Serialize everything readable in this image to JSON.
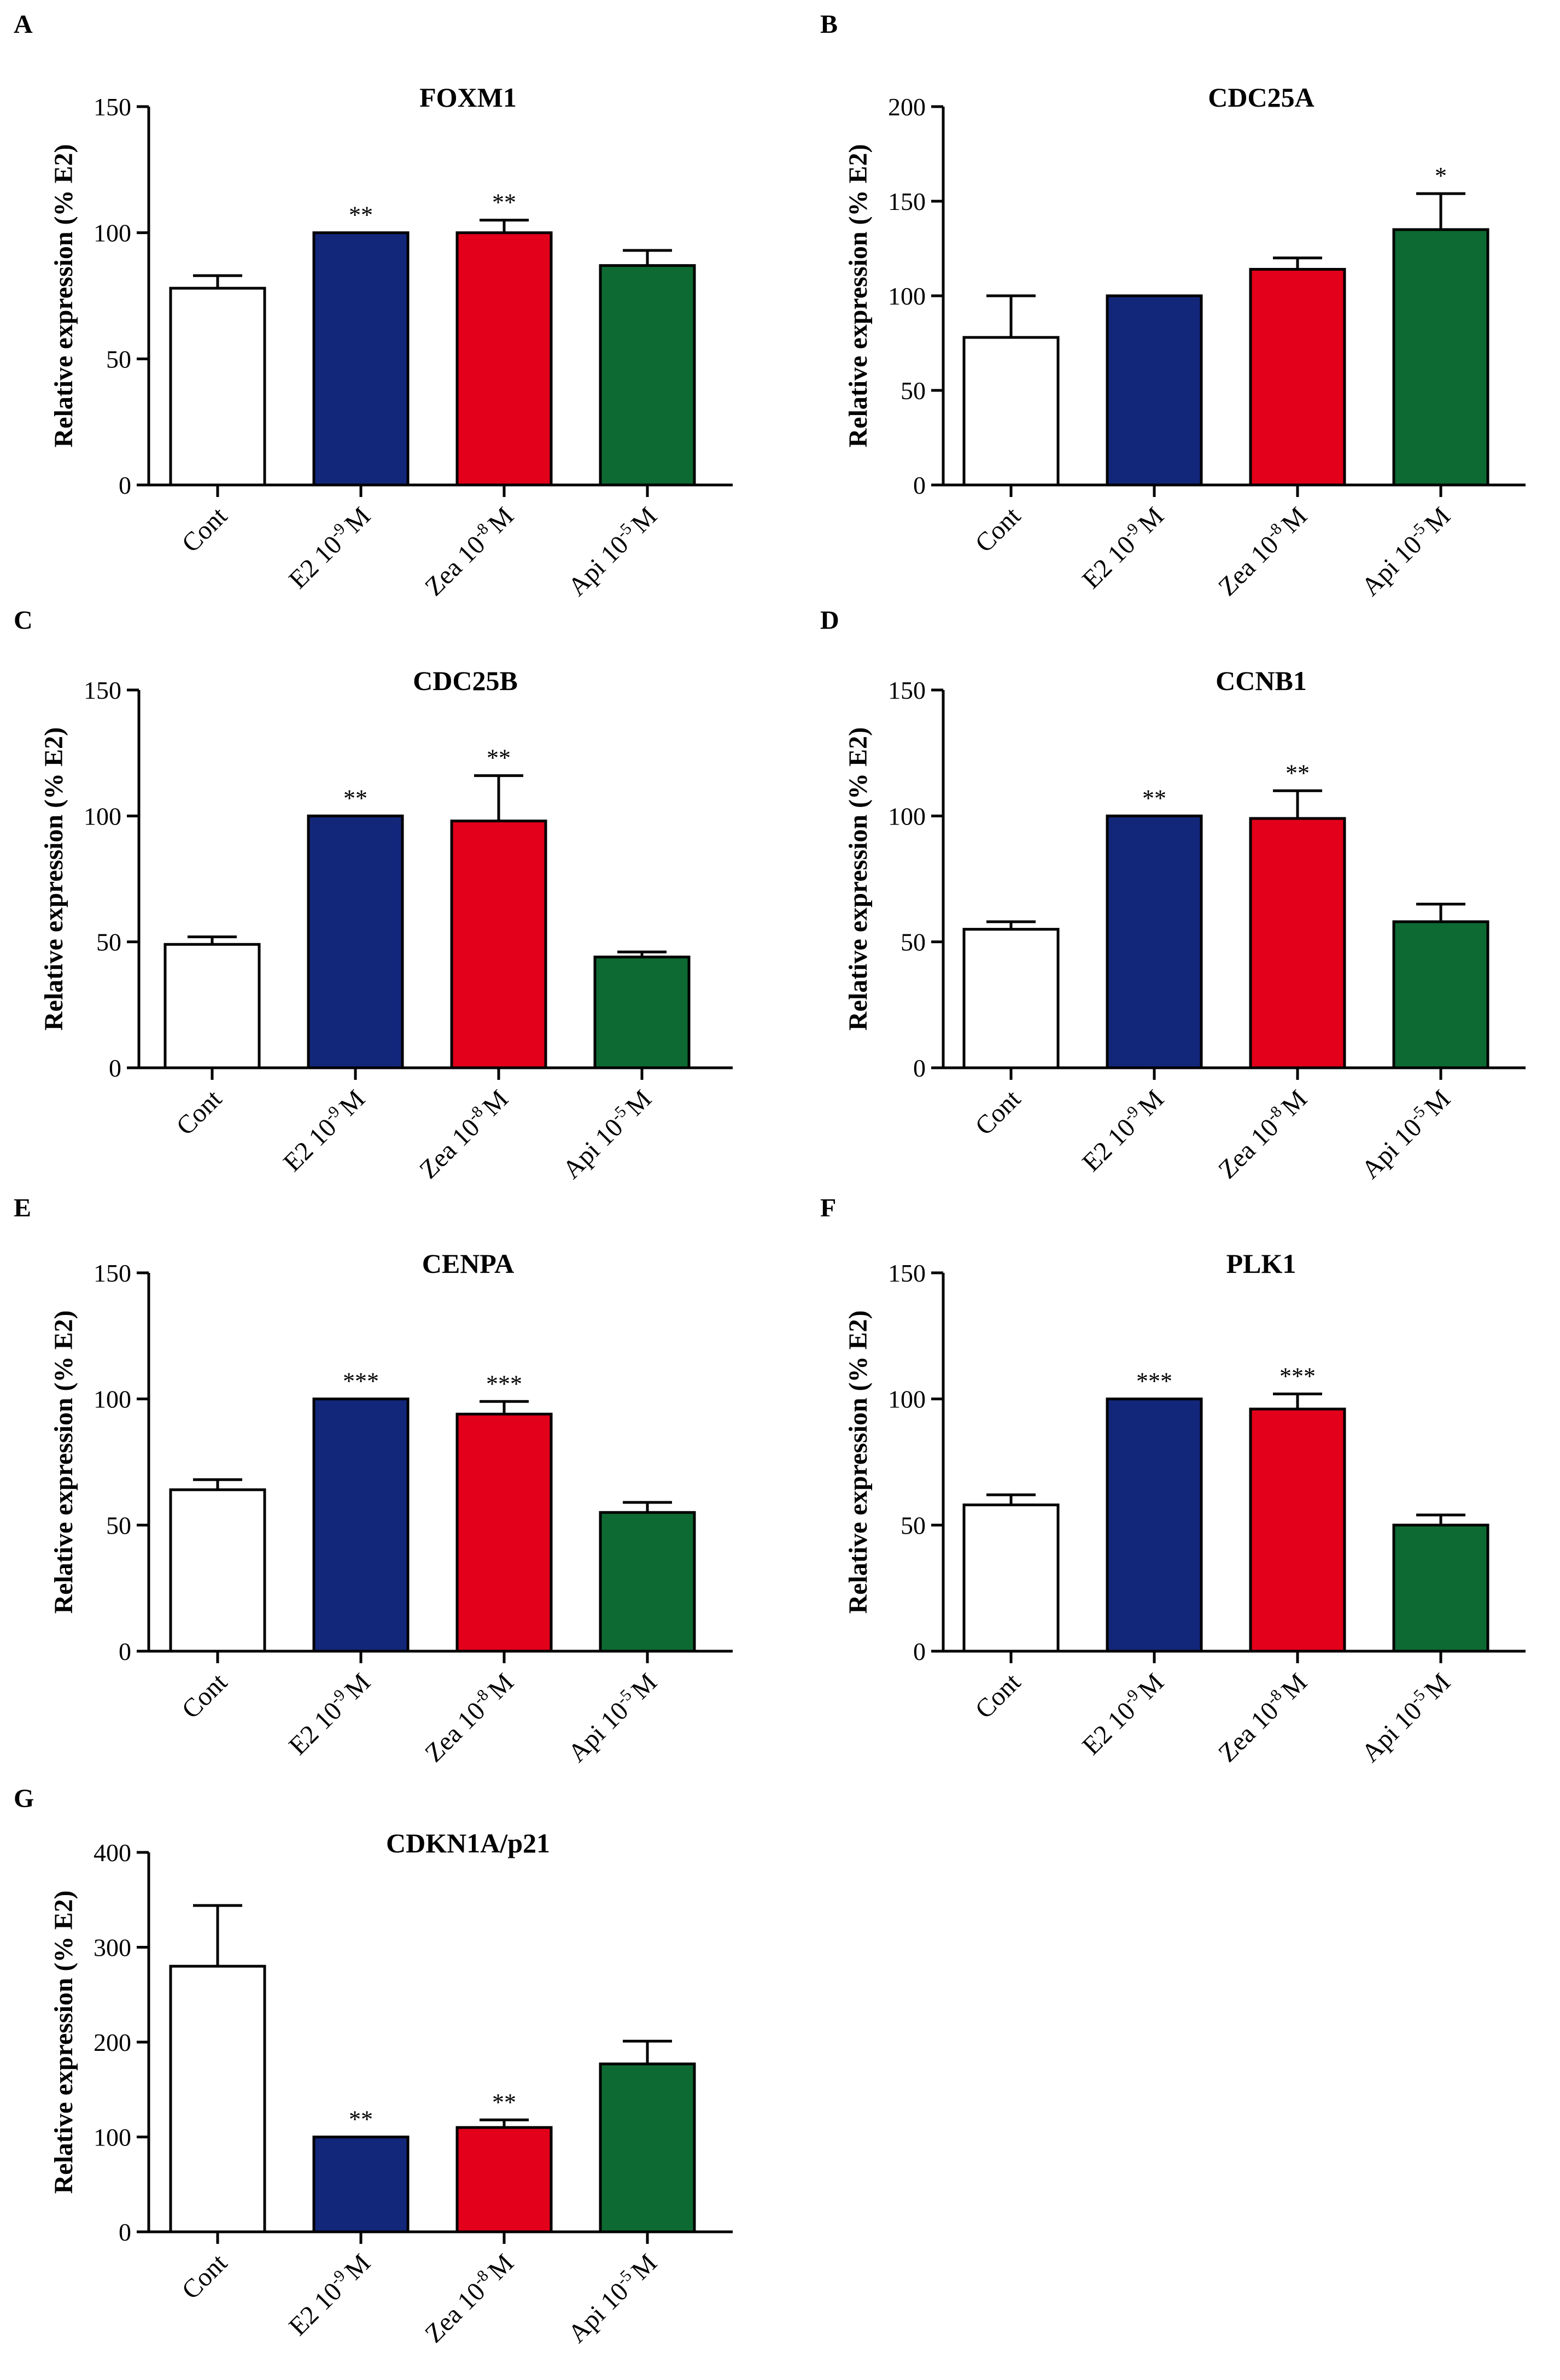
{
  "figure": {
    "categories": [
      {
        "base": "Cont",
        "exp": "",
        "unit": ""
      },
      {
        "base": "E2 10",
        "exp": "-9",
        "unit": "M"
      },
      {
        "base": "Zea 10",
        "exp": "-8",
        "unit": "M"
      },
      {
        "base": "Api 10",
        "exp": "-5",
        "unit": "M"
      }
    ],
    "colors": {
      "Cont": "#ffffff",
      "E2": "#13277a",
      "Zea": "#e2001a",
      "Api": "#0d6a33",
      "axis": "#000000"
    }
  },
  "chart_data": [
    {
      "panel": "A",
      "type": "bar",
      "title": "FOXM1",
      "xlabel": "",
      "ylabel": "Relative expression (% E2)",
      "ylim": [
        0,
        150
      ],
      "yticks": [
        0,
        50,
        100,
        150
      ],
      "categories": [
        "Cont",
        "E2 10-9 M",
        "Zea 10-8 M",
        "Api 10-5 M"
      ],
      "values": [
        78,
        100,
        100,
        87
      ],
      "errors": [
        5,
        0,
        5,
        6
      ],
      "significance": [
        "",
        "**",
        "**",
        ""
      ]
    },
    {
      "panel": "B",
      "type": "bar",
      "title": "CDC25A",
      "xlabel": "",
      "ylabel": "Relative expression (% E2)",
      "ylim": [
        0,
        200
      ],
      "yticks": [
        0,
        50,
        100,
        150,
        200
      ],
      "categories": [
        "Cont",
        "E2 10-9 M",
        "Zea 10-8 M",
        "Api 10-5 M"
      ],
      "values": [
        78,
        100,
        114,
        135
      ],
      "errors": [
        22,
        0,
        6,
        19
      ],
      "significance": [
        "",
        "",
        "",
        "*"
      ]
    },
    {
      "panel": "C",
      "type": "bar",
      "title": "CDC25B",
      "xlabel": "",
      "ylabel": "Relative expression (% E2)",
      "ylim": [
        0,
        150
      ],
      "yticks": [
        0,
        50,
        100,
        150
      ],
      "categories": [
        "Cont",
        "E2 10-9 M",
        "Zea 10-8 M",
        "Api 10-5 M"
      ],
      "values": [
        49,
        100,
        98,
        44
      ],
      "errors": [
        3,
        0,
        18,
        2
      ],
      "significance": [
        "",
        "**",
        "**",
        ""
      ]
    },
    {
      "panel": "D",
      "type": "bar",
      "title": "CCNB1",
      "xlabel": "",
      "ylabel": "Relative expression (% E2)",
      "ylim": [
        0,
        150
      ],
      "yticks": [
        0,
        50,
        100,
        150
      ],
      "categories": [
        "Cont",
        "E2 10-9 M",
        "Zea 10-8 M",
        "Api 10-5 M"
      ],
      "values": [
        55,
        100,
        99,
        58
      ],
      "errors": [
        3,
        0,
        11,
        7
      ],
      "significance": [
        "",
        "**",
        "**",
        ""
      ]
    },
    {
      "panel": "E",
      "type": "bar",
      "title": "CENPA",
      "xlabel": "",
      "ylabel": "Relative expression (% E2)",
      "ylim": [
        0,
        150
      ],
      "yticks": [
        0,
        50,
        100,
        150
      ],
      "categories": [
        "Cont",
        "E2 10-9 M",
        "Zea 10-8 M",
        "Api 10-5 M"
      ],
      "values": [
        64,
        100,
        94,
        55
      ],
      "errors": [
        4,
        0,
        5,
        4
      ],
      "significance": [
        "",
        "***",
        "***",
        ""
      ]
    },
    {
      "panel": "F",
      "type": "bar",
      "title": "PLK1",
      "xlabel": "",
      "ylabel": "Relative expression (% E2)",
      "ylim": [
        0,
        150
      ],
      "yticks": [
        0,
        50,
        100,
        150
      ],
      "categories": [
        "Cont",
        "E2 10-9 M",
        "Zea 10-8 M",
        "Api 10-5 M"
      ],
      "values": [
        58,
        100,
        96,
        50
      ],
      "errors": [
        4,
        0,
        6,
        4
      ],
      "significance": [
        "",
        "***",
        "***",
        ""
      ]
    },
    {
      "panel": "G",
      "type": "bar",
      "title": "CDKN1A/p21",
      "xlabel": "",
      "ylabel": "Relative expression (% E2)",
      "ylim": [
        0,
        400
      ],
      "yticks": [
        0,
        100,
        200,
        300,
        400
      ],
      "categories": [
        "Cont",
        "E2 10-9 M",
        "Zea 10-8 M",
        "Api 10-5 M"
      ],
      "values": [
        280,
        100,
        110,
        177
      ],
      "errors": [
        64,
        0,
        8,
        24
      ],
      "significance": [
        "",
        "**",
        "**",
        ""
      ]
    }
  ]
}
